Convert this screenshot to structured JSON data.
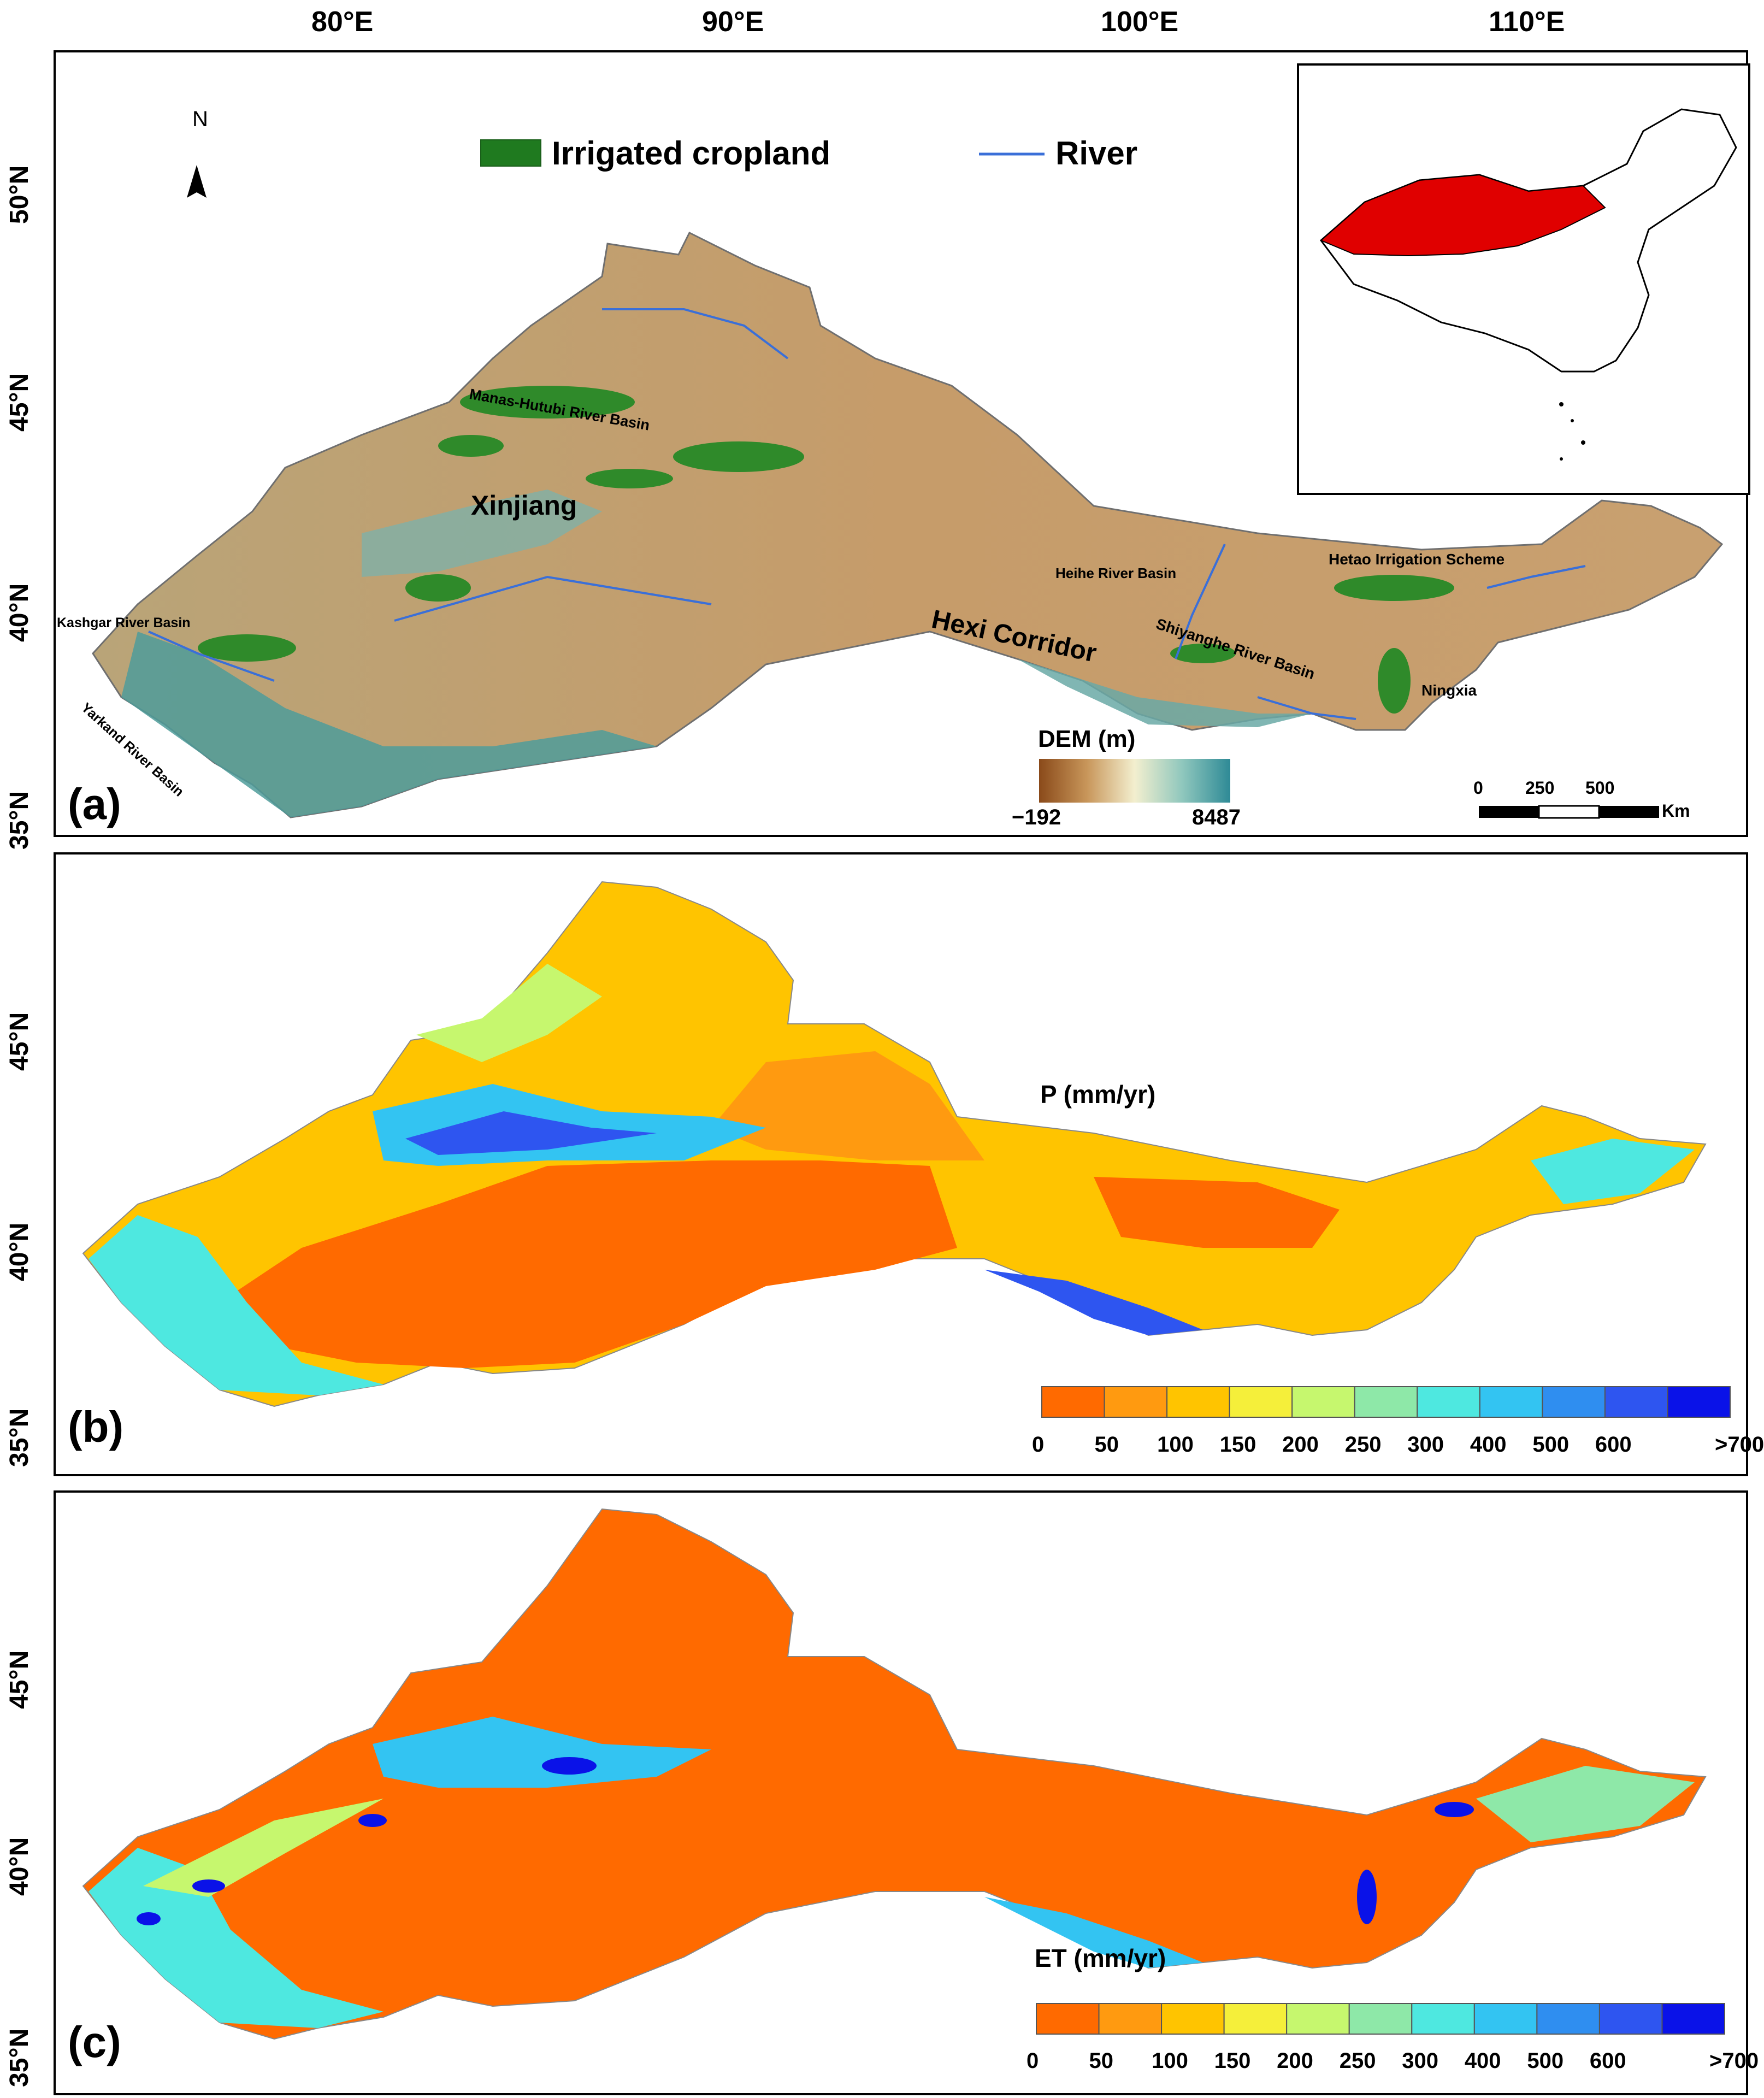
{
  "figure": {
    "lon_ticks": [
      "80°E",
      "90°E",
      "100°E",
      "110°E"
    ],
    "colors": {
      "cropland": "#1f7a1f",
      "river": "#3a6fd8",
      "china_region": "#e00000"
    }
  },
  "panel_a": {
    "letter": "(a)",
    "lat_ticks": [
      "50°N",
      "45°N",
      "40°N",
      "35°N"
    ],
    "north_label": "N",
    "legend": {
      "cropland": "Irrigated cropland",
      "river": "River"
    },
    "places": {
      "xinjiang": "Xinjiang",
      "hexi": "Hexi Corridor",
      "manas": "Manas-Hutubi River Basin",
      "kashgar": "Kashgar River Basin",
      "yarkand": "Yarkand River Basin",
      "heihe": "Heihe River Basin",
      "hetao": "Hetao Irrigation Scheme",
      "shiyanghe": "Shiyanghe River Basin",
      "ningxia": "Ningxia"
    },
    "dem": {
      "title": "DEM (m)",
      "min": "−192",
      "max": "8487"
    },
    "scalebar": {
      "t0": "0",
      "t1": "250",
      "t2": "500",
      "unit": "Km"
    }
  },
  "panel_b": {
    "letter": "(b)",
    "lat_ticks": [
      "45°N",
      "40°N",
      "35°N"
    ],
    "legend_title": "P (mm/yr)",
    "classes": [
      "0",
      "50",
      "100",
      "150",
      "200",
      "250",
      "300",
      "400",
      "500",
      "600",
      ">700"
    ],
    "palette": [
      "#ff6a00",
      "#ff9a10",
      "#ffc400",
      "#f5ef3a",
      "#c6f76e",
      "#8ee8a8",
      "#4ee8e0",
      "#33c4f2",
      "#2f8ef0",
      "#2e55f0",
      "#0a12e8"
    ]
  },
  "panel_c": {
    "letter": "(c)",
    "lat_ticks": [
      "45°N",
      "40°N",
      "35°N"
    ],
    "legend_title": "ET (mm/yr)",
    "classes": [
      "0",
      "50",
      "100",
      "150",
      "200",
      "250",
      "300",
      "400",
      "500",
      "600",
      ">700"
    ],
    "palette": [
      "#ff6a00",
      "#ff9a10",
      "#ffc400",
      "#f5ef3a",
      "#c6f76e",
      "#8ee8a8",
      "#4ee8e0",
      "#33c4f2",
      "#2f8ef0",
      "#2e55f0",
      "#0a12e8"
    ]
  }
}
